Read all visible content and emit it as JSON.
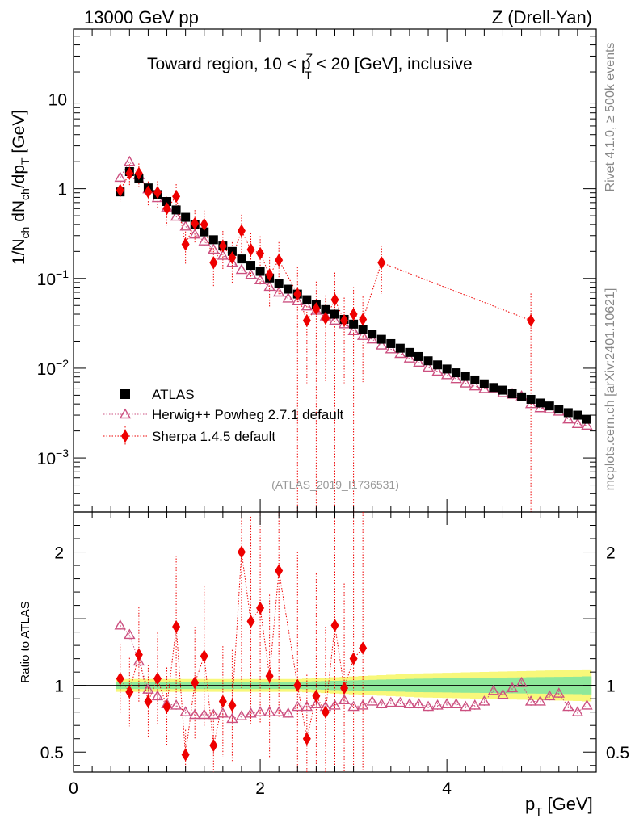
{
  "header": {
    "left": "13000 GeV pp",
    "right": "Z (Drell-Yan)"
  },
  "side": {
    "rivet": "Rivet 4.1.0, ≥ 500k events",
    "mcplots": "mcplots.cern.ch [arXiv:2401.10621]"
  },
  "chart_data": {
    "type": "scatter",
    "title": "Toward region, 10 < p_T^Z < 20 [GeV], inclusive",
    "title_parts": {
      "pre": "Toward region, 10 < p",
      "sup": "Z",
      "sub": "T",
      "post": " < 20 [GeV], inclusive"
    },
    "analysis_tag": "(ATLAS_2019_I1736531)",
    "xlabel": "p_T [GeV]",
    "xlabel_parts": {
      "main": "p",
      "sub": "T",
      "unit": " [GeV]"
    },
    "ylabel": "1/N_ch dN_ch/dp_T [GeV]",
    "ylabel_parts": {
      "a": "1/N",
      "a_sub": "ch",
      "b": " dN",
      "b_sub": "ch",
      "c": "/dp",
      "c_sub": "T",
      "d": " [GeV]"
    },
    "ratio_ylabel": "Ratio to ATLAS",
    "xlim": [
      0,
      5.6
    ],
    "ylim": [
      0.00025,
      60
    ],
    "yscale": "log",
    "ratio_ylim": [
      0.35,
      2.3
    ],
    "x_ticks": [
      0,
      2,
      4
    ],
    "x_tick_labels": [
      "0",
      "2",
      "4"
    ],
    "y_ticks": [
      10,
      1,
      0.1,
      0.01,
      0.001
    ],
    "y_tick_labels": [
      {
        "base": "10",
        "exp": ""
      },
      {
        "base": "1",
        "exp": ""
      },
      {
        "base": "10",
        "exp": "−1"
      },
      {
        "base": "10",
        "exp": "−2"
      },
      {
        "base": "10",
        "exp": "−3"
      }
    ],
    "ratio_ticks": [
      2,
      1,
      0.5
    ],
    "ratio_tick_labels": [
      "2",
      "1",
      "0.5"
    ],
    "legend_position": "lower-left",
    "x": [
      0.5,
      0.6,
      0.7,
      0.8,
      0.9,
      1.0,
      1.1,
      1.2,
      1.3,
      1.4,
      1.5,
      1.6,
      1.7,
      1.8,
      1.9,
      2.0,
      2.1,
      2.2,
      2.3,
      2.4,
      2.5,
      2.6,
      2.7,
      2.8,
      2.9,
      3.0,
      3.1,
      3.2,
      3.3,
      3.4,
      3.5,
      3.6,
      3.7,
      3.8,
      3.9,
      4.0,
      4.1,
      4.2,
      4.3,
      4.4,
      4.5,
      4.6,
      4.7,
      4.8,
      4.9,
      5.0,
      5.1,
      5.2,
      5.3,
      5.4,
      5.5
    ],
    "atlas_band_halfwidth": [
      0.03,
      0.03,
      0.03,
      0.03,
      0.03,
      0.03,
      0.03,
      0.03,
      0.03,
      0.03,
      0.03,
      0.03,
      0.03,
      0.03,
      0.03,
      0.03,
      0.03,
      0.03,
      0.03,
      0.03,
      0.032,
      0.034,
      0.036,
      0.038,
      0.04,
      0.042,
      0.044,
      0.046,
      0.048,
      0.05,
      0.052,
      0.054,
      0.056,
      0.057,
      0.058,
      0.059,
      0.06,
      0.061,
      0.062,
      0.063,
      0.064,
      0.065,
      0.066,
      0.067,
      0.068,
      0.069,
      0.07,
      0.071,
      0.072,
      0.073,
      0.075
    ],
    "series": [
      {
        "name": "ATLAS",
        "color": "#000000",
        "marker": "square",
        "values": [
          0.92,
          1.55,
          1.3,
          1.02,
          0.86,
          0.72,
          0.58,
          0.48,
          0.4,
          0.33,
          0.27,
          0.23,
          0.2,
          0.165,
          0.14,
          0.12,
          0.101,
          0.087,
          0.076,
          0.067,
          0.058,
          0.051,
          0.045,
          0.04,
          0.035,
          0.031,
          0.027,
          0.024,
          0.021,
          0.0188,
          0.0167,
          0.015,
          0.0135,
          0.0121,
          0.0109,
          0.0098,
          0.0089,
          0.0081,
          0.0074,
          0.0067,
          0.0061,
          0.0057,
          0.0052,
          0.0048,
          0.0045,
          0.0041,
          0.0038,
          0.0035,
          0.0032,
          0.003,
          0.0027
        ]
      },
      {
        "name": "Herwig++ Powheg 2.7.1 default",
        "color": "#cc5080",
        "marker": "open-triangle",
        "values": [
          1.33,
          2.0,
          1.42,
          0.99,
          0.79,
          0.62,
          0.49,
          0.38,
          0.31,
          0.26,
          0.21,
          0.18,
          0.15,
          0.125,
          0.11,
          0.096,
          0.081,
          0.07,
          0.06,
          0.056,
          0.049,
          0.044,
          0.038,
          0.034,
          0.031,
          0.026,
          0.023,
          0.021,
          0.018,
          0.0163,
          0.0145,
          0.0129,
          0.0116,
          0.0102,
          0.0092,
          0.0084,
          0.0076,
          0.0068,
          0.0063,
          0.0059,
          0.0059,
          0.0053,
          0.0051,
          0.0049,
          0.004,
          0.0036,
          0.0035,
          0.0033,
          0.0027,
          0.0024,
          0.0023
        ],
        "ratio": [
          1.45,
          1.38,
          1.18,
          0.97,
          0.92,
          0.86,
          0.85,
          0.8,
          0.78,
          0.78,
          0.78,
          0.79,
          0.75,
          0.77,
          0.79,
          0.8,
          0.8,
          0.8,
          0.79,
          0.84,
          0.84,
          0.86,
          0.84,
          0.85,
          0.89,
          0.84,
          0.85,
          0.88,
          0.86,
          0.87,
          0.87,
          0.86,
          0.86,
          0.84,
          0.85,
          0.86,
          0.86,
          0.84,
          0.85,
          0.88,
          0.96,
          0.93,
          0.98,
          1.02,
          0.88,
          0.88,
          0.92,
          0.94,
          0.84,
          0.8,
          0.85
        ]
      },
      {
        "name": "Sherpa 1.4.5 default",
        "color": "#ee0000",
        "marker": "diamond",
        "x": [
          0.5,
          0.6,
          0.7,
          0.8,
          0.9,
          1.0,
          1.1,
          1.2,
          1.3,
          1.4,
          1.5,
          1.6,
          1.7,
          1.8,
          1.9,
          2.0,
          2.1,
          2.2,
          2.4,
          2.5,
          2.6,
          2.7,
          2.8,
          2.9,
          3.0,
          3.1,
          3.3,
          4.9
        ],
        "values": [
          0.96,
          1.48,
          1.48,
          0.92,
          0.91,
          0.6,
          0.82,
          0.24,
          0.41,
          0.4,
          0.15,
          0.23,
          0.17,
          0.34,
          0.21,
          0.19,
          0.11,
          0.16,
          0.067,
          0.034,
          0.046,
          0.036,
          0.058,
          0.034,
          0.04,
          0.035,
          0.15,
          0.034
        ],
        "ratio": [
          1.05,
          0.95,
          1.23,
          0.88,
          1.05,
          0.84,
          1.44,
          0.48,
          1.02,
          1.22,
          0.55,
          0.88,
          0.85,
          2.0,
          1.48,
          1.58,
          1.07,
          1.86,
          1.0,
          0.6,
          0.92,
          0.8,
          1.45,
          0.98,
          1.2,
          1.28,
          null,
          null
        ]
      }
    ]
  }
}
